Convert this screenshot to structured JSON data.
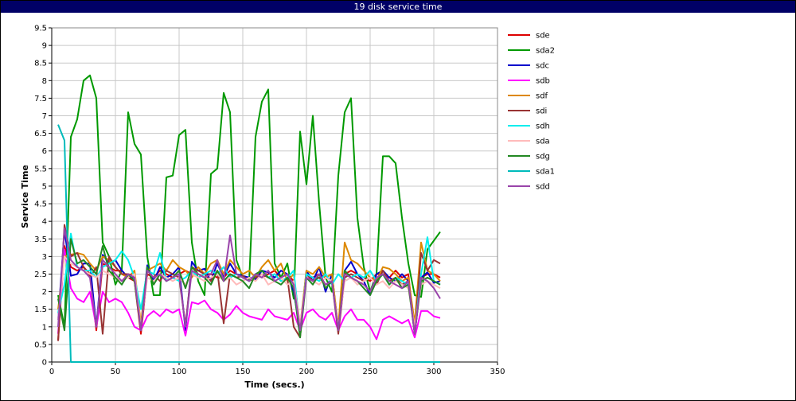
{
  "window": {
    "title": "19 disk service time"
  },
  "chart_data": {
    "type": "line",
    "title": "19 disk service time",
    "xlabel": "Time (secs.)",
    "ylabel": "Service Time",
    "xlim": [
      0,
      350
    ],
    "ylim": [
      0,
      9.5
    ],
    "xticks": [
      0,
      50,
      100,
      150,
      200,
      250,
      300,
      350
    ],
    "yticks": [
      0,
      0.5,
      1,
      1.5,
      2,
      2.5,
      3,
      3.5,
      4,
      4.5,
      5,
      5.5,
      6,
      6.5,
      7,
      7.5,
      8,
      8.5,
      9,
      9.5
    ],
    "grid": true,
    "legend_position": "right",
    "x": [
      5,
      10,
      15,
      20,
      25,
      30,
      35,
      40,
      45,
      50,
      55,
      60,
      65,
      70,
      75,
      80,
      85,
      90,
      95,
      100,
      105,
      110,
      115,
      120,
      125,
      130,
      135,
      140,
      145,
      150,
      155,
      160,
      165,
      170,
      175,
      180,
      185,
      190,
      195,
      200,
      205,
      210,
      215,
      220,
      225,
      230,
      235,
      240,
      245,
      250,
      255,
      260,
      265,
      270,
      275,
      280,
      285,
      290,
      295,
      300,
      305
    ],
    "series": [
      {
        "name": "sde",
        "color": "#dd0000",
        "values": [
          0.6,
          3.3,
          2.7,
          2.6,
          2.7,
          2.5,
          0.9,
          2.8,
          2.7,
          2.6,
          2.6,
          2.4,
          2.3,
          0.8,
          2.5,
          2.4,
          2.6,
          2.5,
          2.4,
          2.5,
          2.6,
          2.5,
          2.4,
          2.5,
          2.5,
          2.4,
          2.4,
          2.6,
          2.5,
          2.4,
          2.3,
          2.5,
          2.4,
          2.5,
          2.6,
          2.4,
          2.5,
          2.3,
          0.8,
          2.5,
          2.4,
          2.5,
          2.4,
          2.5,
          0.9,
          2.5,
          2.6,
          2.5,
          2.4,
          2.3,
          2.5,
          2.5,
          2.4,
          2.6,
          2.4,
          2.5,
          0.8,
          2.4,
          2.5,
          2.5,
          2.4
        ]
      },
      {
        "name": "sda2",
        "color": "#009900",
        "values": [
          1.9,
          1.0,
          6.4,
          6.9,
          8.0,
          8.15,
          7.5,
          3.4,
          3.0,
          2.2,
          2.6,
          7.1,
          6.2,
          5.9,
          3.0,
          1.9,
          1.9,
          5.25,
          5.3,
          6.45,
          6.6,
          3.4,
          2.3,
          1.9,
          5.35,
          5.5,
          7.65,
          7.1,
          2.9,
          2.4,
          2.3,
          6.4,
          7.4,
          7.75,
          2.8,
          2.4,
          2.8,
          1.8,
          6.55,
          5.05,
          7.0,
          4.5,
          2.4,
          2.0,
          5.3,
          7.1,
          7.5,
          4.1,
          2.7,
          2.0,
          2.5,
          5.85,
          5.85,
          5.65,
          4.1,
          2.8,
          1.9,
          1.85,
          3.2,
          3.45,
          3.7
        ]
      },
      {
        "name": "sdc",
        "color": "#0000cc",
        "values": [
          1.2,
          3.75,
          2.45,
          2.5,
          2.8,
          2.8,
          1.0,
          3.05,
          2.8,
          2.9,
          2.6,
          2.4,
          2.4,
          1.0,
          2.75,
          2.3,
          2.7,
          2.4,
          2.5,
          2.7,
          0.9,
          2.85,
          2.6,
          2.65,
          2.3,
          2.8,
          2.4,
          2.8,
          2.5,
          2.45,
          2.4,
          2.35,
          2.6,
          2.55,
          2.4,
          2.6,
          2.5,
          2.0,
          0.9,
          2.6,
          2.3,
          2.7,
          2.0,
          2.5,
          0.9,
          2.6,
          2.85,
          2.5,
          2.3,
          1.9,
          2.5,
          2.6,
          2.4,
          2.3,
          2.5,
          2.3,
          0.8,
          2.4,
          2.55,
          2.25,
          2.3
        ]
      },
      {
        "name": "sdb",
        "color": "#ff00ff",
        "values": [
          0.8,
          3.2,
          2.1,
          1.8,
          1.7,
          2.0,
          1.0,
          2.0,
          1.7,
          1.8,
          1.7,
          1.4,
          1.0,
          0.9,
          1.3,
          1.45,
          1.3,
          1.5,
          1.4,
          1.5,
          0.75,
          1.7,
          1.65,
          1.75,
          1.5,
          1.4,
          1.2,
          1.35,
          1.6,
          1.4,
          1.3,
          1.25,
          1.2,
          1.5,
          1.3,
          1.25,
          1.2,
          1.4,
          0.9,
          1.4,
          1.5,
          1.3,
          1.2,
          1.4,
          0.9,
          1.3,
          1.5,
          1.2,
          1.2,
          1.0,
          0.65,
          1.2,
          1.3,
          1.2,
          1.1,
          1.2,
          0.7,
          1.45,
          1.45,
          1.3,
          1.25
        ]
      },
      {
        "name": "sdf",
        "color": "#dd8800",
        "values": [
          1.5,
          3.0,
          3.05,
          3.1,
          3.05,
          2.8,
          2.6,
          3.0,
          2.9,
          2.7,
          2.5,
          2.4,
          2.6,
          1.1,
          2.6,
          2.7,
          2.8,
          2.6,
          2.9,
          2.7,
          2.6,
          2.4,
          2.7,
          2.5,
          2.8,
          2.9,
          2.5,
          2.9,
          2.7,
          2.5,
          2.6,
          2.4,
          2.7,
          2.9,
          2.6,
          2.8,
          2.3,
          2.5,
          1.0,
          2.6,
          2.5,
          2.7,
          2.4,
          2.5,
          1.0,
          3.4,
          2.9,
          2.8,
          2.6,
          2.4,
          2.3,
          2.7,
          2.65,
          2.5,
          2.3,
          2.4,
          1.1,
          3.4,
          2.6,
          2.5,
          2.3
        ]
      },
      {
        "name": "sdi",
        "color": "#993333",
        "values": [
          0.6,
          3.9,
          3.0,
          3.1,
          2.7,
          2.4,
          2.7,
          0.8,
          3.0,
          2.7,
          2.5,
          2.5,
          2.45,
          0.9,
          2.6,
          2.5,
          2.3,
          2.6,
          2.5,
          2.4,
          1.05,
          2.7,
          2.6,
          2.5,
          2.3,
          2.6,
          1.1,
          2.5,
          2.4,
          2.45,
          2.3,
          2.4,
          2.5,
          2.4,
          2.5,
          2.3,
          2.4,
          1.0,
          0.7,
          2.5,
          2.3,
          2.4,
          2.2,
          2.3,
          0.8,
          2.4,
          2.5,
          2.4,
          2.3,
          2.4,
          2.2,
          2.6,
          2.3,
          2.4,
          2.2,
          2.3,
          0.8,
          3.1,
          2.6,
          2.9,
          2.8
        ]
      },
      {
        "name": "sdh",
        "color": "#00eeee",
        "values": [
          1.4,
          2.2,
          3.65,
          2.7,
          2.6,
          2.6,
          2.4,
          2.7,
          2.8,
          2.9,
          3.15,
          2.9,
          2.4,
          1.5,
          2.6,
          2.5,
          3.1,
          2.3,
          2.4,
          2.3,
          2.4,
          2.6,
          2.4,
          2.5,
          2.6,
          2.5,
          2.7,
          2.4,
          2.5,
          2.4,
          2.3,
          2.5,
          2.6,
          2.4,
          2.5,
          2.3,
          2.4,
          2.6,
          0.85,
          2.5,
          2.4,
          2.3,
          2.5,
          2.2,
          2.5,
          2.3,
          2.4,
          2.5,
          2.4,
          2.6,
          2.3,
          2.5,
          2.2,
          2.4,
          2.3,
          2.2,
          0.9,
          2.5,
          3.55,
          2.3,
          2.2
        ]
      },
      {
        "name": "sda",
        "color": "#ffbbbb",
        "values": [
          1.2,
          3.0,
          2.8,
          2.7,
          2.6,
          2.5,
          2.4,
          2.6,
          2.5,
          2.4,
          2.3,
          2.4,
          2.5,
          1.0,
          2.4,
          2.3,
          2.5,
          2.4,
          2.3,
          2.4,
          2.2,
          2.5,
          2.4,
          2.3,
          2.4,
          2.5,
          2.3,
          2.4,
          2.2,
          2.3,
          2.4,
          2.3,
          2.5,
          2.2,
          2.3,
          2.4,
          2.2,
          2.3,
          1.0,
          2.4,
          2.3,
          2.2,
          2.4,
          2.3,
          1.0,
          2.3,
          2.4,
          2.2,
          2.3,
          2.4,
          2.2,
          2.3,
          2.1,
          2.3,
          2.2,
          2.1,
          1.0,
          2.2,
          2.3,
          2.2,
          2.1
        ]
      },
      {
        "name": "sdg",
        "color": "#228822",
        "values": [
          1.8,
          0.9,
          3.5,
          2.8,
          2.9,
          2.7,
          2.5,
          3.3,
          2.6,
          2.4,
          2.2,
          2.5,
          2.3,
          0.9,
          2.7,
          2.2,
          2.5,
          2.3,
          2.4,
          2.6,
          2.1,
          2.7,
          2.5,
          2.4,
          2.2,
          2.6,
          2.3,
          2.5,
          2.4,
          2.3,
          2.1,
          2.5,
          2.6,
          2.4,
          2.3,
          2.2,
          2.4,
          2.1,
          0.7,
          2.4,
          2.2,
          2.5,
          2.1,
          2.3,
          0.9,
          2.6,
          2.4,
          2.3,
          2.1,
          1.9,
          2.3,
          2.5,
          2.2,
          2.4,
          2.1,
          2.2,
          0.8,
          2.3,
          2.4,
          2.3,
          2.2
        ]
      },
      {
        "name": "sda1",
        "color": "#00bbbb",
        "values": [
          6.75,
          6.3,
          0.0,
          0.0,
          0.0,
          0.0,
          0.0,
          0.0,
          0.0,
          0.0,
          0.0,
          0.0,
          0.0,
          0.0,
          0.0,
          0.0,
          0.0,
          0.0,
          0.0,
          0.0,
          0.0,
          0.0,
          0.0,
          0.0,
          0.0,
          0.0,
          0.0,
          0.0,
          0.0,
          0.0,
          0.0,
          0.0,
          0.0,
          0.0,
          0.0,
          0.0,
          0.0,
          0.0,
          0.0,
          0.0,
          0.0,
          0.0,
          0.0,
          0.0,
          0.0,
          0.0,
          0.0,
          0.0,
          0.0,
          0.0,
          0.0,
          0.0,
          0.0,
          0.0,
          0.0,
          0.0,
          0.0,
          0.0,
          0.0,
          0.0,
          0.0
        ]
      },
      {
        "name": "sdd",
        "color": "#9944aa",
        "values": [
          1.0,
          3.8,
          2.9,
          2.7,
          2.6,
          2.4,
          1.0,
          2.9,
          2.7,
          2.5,
          2.3,
          2.5,
          2.4,
          0.9,
          2.6,
          2.4,
          2.5,
          2.3,
          2.4,
          2.5,
          1.0,
          2.6,
          2.5,
          2.4,
          2.5,
          2.9,
          2.3,
          3.6,
          2.5,
          2.4,
          2.3,
          2.5,
          2.4,
          2.6,
          2.3,
          2.4,
          2.5,
          2.2,
          0.9,
          2.4,
          2.3,
          2.5,
          2.2,
          2.3,
          0.9,
          2.5,
          2.4,
          2.3,
          2.2,
          2.0,
          2.4,
          2.5,
          2.3,
          2.2,
          2.1,
          2.3,
          0.8,
          2.4,
          2.3,
          2.1,
          1.8
        ]
      }
    ]
  }
}
